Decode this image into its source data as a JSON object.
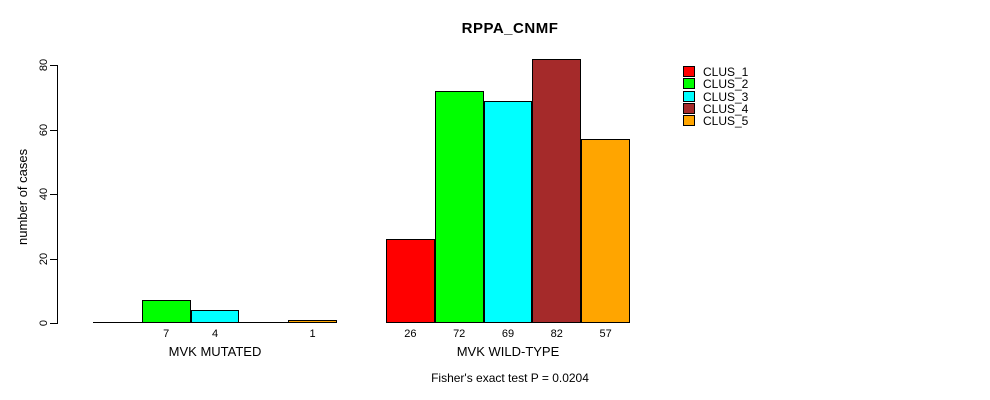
{
  "chart_data": {
    "type": "bar",
    "title": "RPPA_CNMF",
    "ylabel": "number of cases",
    "xlabel": "",
    "annotation": "Fisher's exact test P = 0.0204",
    "ylim": [
      0,
      82
    ],
    "yticks": [
      0,
      20,
      40,
      60,
      80
    ],
    "grid": false,
    "legend_position": "right",
    "legend": [
      {
        "label": "CLUS_1",
        "color": "#ff0000"
      },
      {
        "label": "CLUS_2",
        "color": "#00ff00"
      },
      {
        "label": "CLUS_3",
        "color": "#00ffff"
      },
      {
        "label": "CLUS_4",
        "color": "#a52a2a"
      },
      {
        "label": "CLUS_5",
        "color": "#ffa500"
      }
    ],
    "series_colors": [
      "#ff0000",
      "#00ff00",
      "#00ffff",
      "#a52a2a",
      "#ffa500"
    ],
    "categories": [
      "MVK MUTATED",
      "MVK WILD-TYPE"
    ],
    "groups": [
      {
        "label": "MVK MUTATED",
        "values": [
          0,
          7,
          4,
          0,
          1
        ],
        "bar_labels": [
          "",
          "7",
          "4",
          "",
          "1"
        ]
      },
      {
        "label": "MVK WILD-TYPE",
        "values": [
          26,
          72,
          69,
          82,
          57
        ],
        "bar_labels": [
          "26",
          "72",
          "69",
          "82",
          "57"
        ]
      }
    ]
  }
}
